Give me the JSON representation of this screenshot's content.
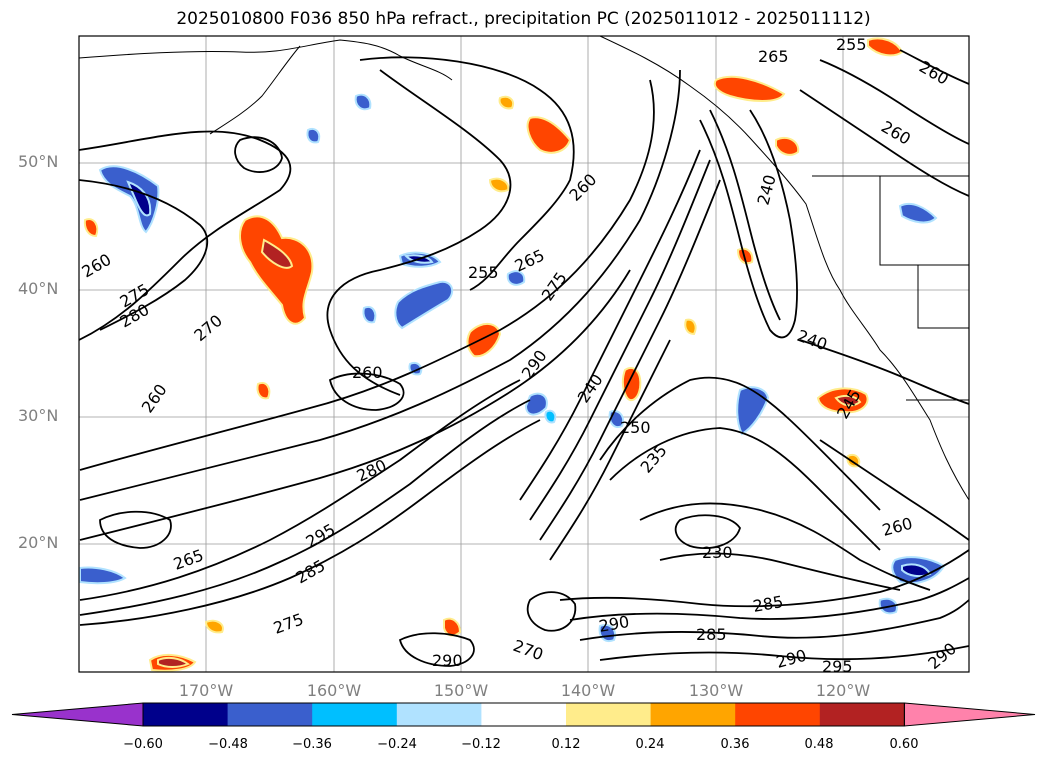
{
  "title": "2025010800 F036 850 hPa refract., precipitation PC (2025011012 - 2025011112)",
  "map": {
    "lat_labels": [
      "50°N",
      "40°N",
      "30°N",
      "20°N"
    ],
    "lon_labels": [
      "170°W",
      "160°W",
      "150°W",
      "140°W",
      "130°W",
      "120°W"
    ],
    "contour_labels": [
      "260",
      "255",
      "265",
      "275",
      "280",
      "270",
      "260",
      "260",
      "290",
      "275",
      "280",
      "240",
      "250",
      "235",
      "230",
      "260",
      "265",
      "295",
      "285",
      "290",
      "275",
      "285",
      "270",
      "290",
      "295",
      "290",
      "285",
      "260",
      "255",
      "265",
      "260",
      "240",
      "240",
      "260",
      "245",
      "290"
    ]
  },
  "colorbar": {
    "tick_labels": [
      "−0.60",
      "−0.48",
      "−0.36",
      "−0.24",
      "−0.12",
      "0.12",
      "0.24",
      "0.36",
      "0.48",
      "0.60"
    ],
    "colors": [
      "#9932cc",
      "#00008b",
      "#3a5fcd",
      "#00bfff",
      "#b0e2ff",
      "#ffffff",
      "#ffec8b",
      "#ffa500",
      "#ff4500",
      "#b22222",
      "#ff82ab"
    ]
  }
}
